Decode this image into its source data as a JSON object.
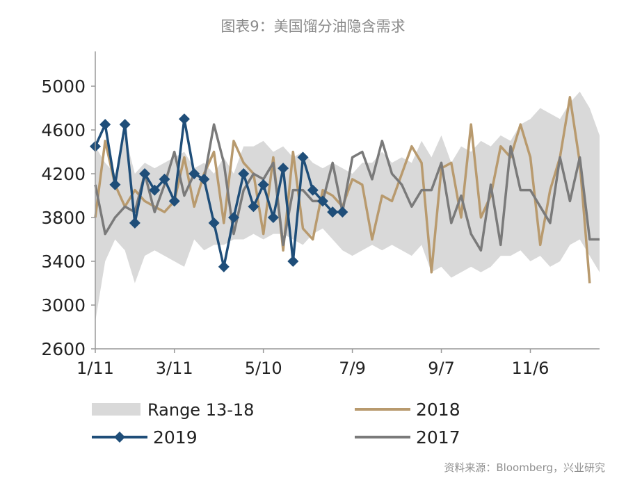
{
  "title": "图表9：美国馏分油隐含需求",
  "source": "资料来源：Bloomberg，兴业研究",
  "chart_data": {
    "type": "line",
    "title": "图表9：美国馏分油隐含需求",
    "xlabel": "",
    "ylabel": "",
    "ylim": [
      2600,
      5000
    ],
    "yticks": [
      2600,
      3000,
      3400,
      3800,
      4200,
      4600,
      5000
    ],
    "xlim": [
      1,
      52
    ],
    "xtick_labels": [
      {
        "week": 1,
        "label": "1/11"
      },
      {
        "week": 9,
        "label": "3/11"
      },
      {
        "week": 18,
        "label": "5/10"
      },
      {
        "week": 27,
        "label": "7/9"
      },
      {
        "week": 36,
        "label": "9/7"
      },
      {
        "week": 45,
        "label": "11/6"
      }
    ],
    "grid": false,
    "legend": "bottom",
    "range": {
      "name": "Range 13-18",
      "color": "#d9d9d9",
      "weeks": [
        1,
        2,
        3,
        4,
        5,
        6,
        7,
        8,
        9,
        10,
        11,
        12,
        13,
        14,
        15,
        16,
        17,
        18,
        19,
        20,
        21,
        22,
        23,
        24,
        25,
        26,
        27,
        28,
        29,
        30,
        31,
        32,
        33,
        34,
        35,
        36,
        37,
        38,
        39,
        40,
        41,
        42,
        43,
        44,
        45,
        46,
        47,
        48,
        49,
        50,
        51,
        52
      ],
      "upper": [
        4450,
        4300,
        4200,
        4550,
        4200,
        4300,
        4250,
        4300,
        4350,
        4400,
        4250,
        4300,
        4200,
        4350,
        4200,
        4450,
        4450,
        4500,
        4400,
        4450,
        4350,
        4400,
        4300,
        4250,
        4300,
        4250,
        4200,
        4300,
        4300,
        4400,
        4300,
        4350,
        4300,
        4500,
        4350,
        4550,
        4300,
        4450,
        4400,
        4500,
        4450,
        4550,
        4500,
        4650,
        4700,
        4800,
        4750,
        4700,
        4850,
        4950,
        4800,
        4550
      ],
      "lower": [
        2850,
        3400,
        3600,
        3500,
        3200,
        3450,
        3500,
        3450,
        3400,
        3350,
        3600,
        3500,
        3550,
        3550,
        3600,
        3600,
        3650,
        3600,
        3650,
        3650,
        3600,
        3550,
        3650,
        3700,
        3600,
        3500,
        3450,
        3500,
        3550,
        3500,
        3550,
        3500,
        3450,
        3550,
        3300,
        3350,
        3250,
        3300,
        3350,
        3300,
        3350,
        3450,
        3450,
        3500,
        3400,
        3450,
        3350,
        3400,
        3550,
        3600,
        3450,
        3300
      ]
    },
    "series": [
      {
        "name": "2018",
        "color": "#b89a6e",
        "marker": "none",
        "x": [
          1,
          2,
          3,
          4,
          5,
          6,
          7,
          8,
          9,
          10,
          11,
          12,
          13,
          14,
          15,
          16,
          17,
          18,
          19,
          20,
          21,
          22,
          23,
          24,
          25,
          26,
          27,
          28,
          29,
          30,
          31,
          32,
          33,
          34,
          35,
          36,
          37,
          38,
          39,
          40,
          41,
          42,
          43,
          44,
          45,
          46,
          47,
          48,
          49,
          50,
          51
        ],
        "y": [
          3800,
          4500,
          4100,
          3900,
          4050,
          3950,
          3900,
          3850,
          3950,
          4350,
          3900,
          4200,
          4400,
          3750,
          4500,
          4300,
          4200,
          3650,
          4350,
          3500,
          4400,
          3700,
          3600,
          4050,
          4000,
          3900,
          4150,
          4100,
          3600,
          4000,
          3950,
          4200,
          4450,
          4300,
          3300,
          4250,
          4300,
          3800,
          4650,
          3800,
          4000,
          4450,
          4350,
          4650,
          4350,
          3550,
          4050,
          4350,
          4900,
          4300,
          3200
        ]
      },
      {
        "name": "2017",
        "color": "#7a7a7a",
        "marker": "none",
        "x": [
          1,
          2,
          3,
          4,
          5,
          6,
          7,
          8,
          9,
          10,
          11,
          12,
          13,
          14,
          15,
          16,
          17,
          18,
          19,
          20,
          21,
          22,
          23,
          24,
          25,
          26,
          27,
          28,
          29,
          30,
          31,
          32,
          33,
          34,
          35,
          36,
          37,
          38,
          39,
          40,
          41,
          42,
          43,
          44,
          45,
          46,
          47,
          48,
          49,
          50,
          51,
          52
        ],
        "y": [
          4100,
          3650,
          3800,
          3900,
          3850,
          4200,
          3850,
          4100,
          4400,
          4000,
          4200,
          4150,
          4650,
          4300,
          3650,
          4050,
          4200,
          4150,
          4300,
          3550,
          4050,
          4050,
          3950,
          3950,
          4300,
          3850,
          4350,
          4400,
          4150,
          4500,
          4200,
          4100,
          3900,
          4050,
          4050,
          4300,
          3750,
          4000,
          3650,
          3500,
          4100,
          3550,
          4450,
          4050,
          4050,
          3900,
          3750,
          4350,
          3950,
          4350,
          3600,
          3600
        ]
      },
      {
        "name": "2019",
        "color": "#1f4e79",
        "marker": "diamond",
        "x": [
          1,
          2,
          3,
          4,
          5,
          6,
          7,
          8,
          9,
          10,
          11,
          12,
          13,
          14,
          15,
          16,
          17,
          18,
          19,
          20,
          21,
          22,
          23,
          24,
          25,
          26
        ],
        "y": [
          4450,
          4650,
          4100,
          4650,
          3750,
          4200,
          4050,
          4150,
          3950,
          4700,
          4200,
          4150,
          3750,
          3350,
          3800,
          4200,
          3900,
          4100,
          3800,
          4250,
          3400,
          4350,
          4050,
          3950,
          3850,
          3850
        ]
      }
    ]
  }
}
